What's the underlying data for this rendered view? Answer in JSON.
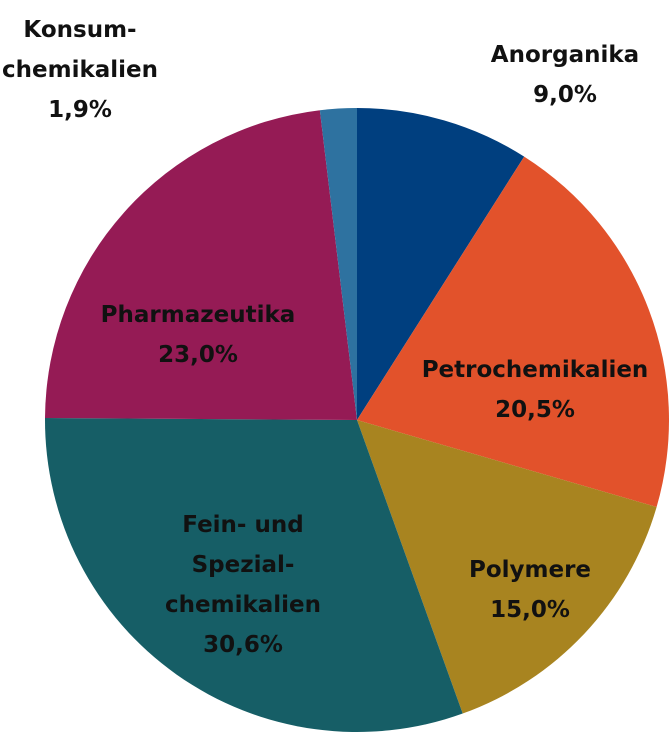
{
  "chart_data": {
    "type": "pie",
    "categories": [
      "Anorganika",
      "Petrochemikalien",
      "Polymere",
      "Fein- und\nSpezial-\nchemikalien",
      "Pharmazeutika",
      "Konsum-\nchemikalien"
    ],
    "values": [
      9.0,
      20.5,
      15.0,
      30.6,
      23.0,
      1.9
    ],
    "value_labels": [
      "9,0%",
      "20,5%",
      "15,0%",
      "30,6%",
      "23,0%",
      "1,9%"
    ],
    "colors": [
      "#003f7f",
      "#e2522b",
      "#a88420",
      "#165e66",
      "#951b55",
      "#2e72a0"
    ]
  }
}
